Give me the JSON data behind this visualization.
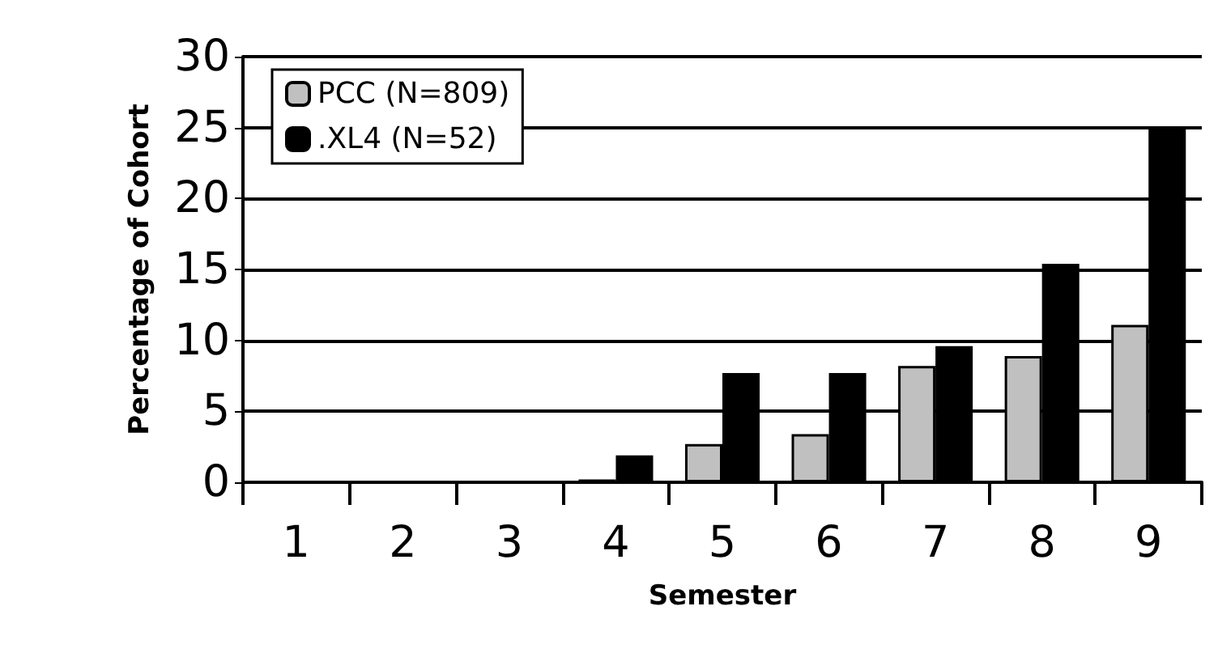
{
  "chart_data": {
    "type": "bar",
    "xlabel": "Semester",
    "ylabel": "Percentage of Cohort",
    "categories": [
      "1",
      "2",
      "3",
      "4",
      "5",
      "6",
      "7",
      "8",
      "9"
    ],
    "series": [
      {
        "name": "PCC (N=809)",
        "color": "#c0c0c0",
        "values": [
          0,
          0,
          0,
          0.2,
          2.7,
          3.4,
          8.2,
          8.9,
          11.1
        ]
      },
      {
        "name": ".XL4 (N=52)",
        "color": "#000000",
        "values": [
          0,
          0,
          0,
          1.9,
          7.7,
          7.7,
          9.6,
          15.4,
          25
        ]
      }
    ],
    "ylim": [
      0,
      30
    ],
    "yticks": [
      0,
      5,
      10,
      15,
      20,
      25,
      30
    ],
    "grid": "y",
    "legend": "top left"
  }
}
